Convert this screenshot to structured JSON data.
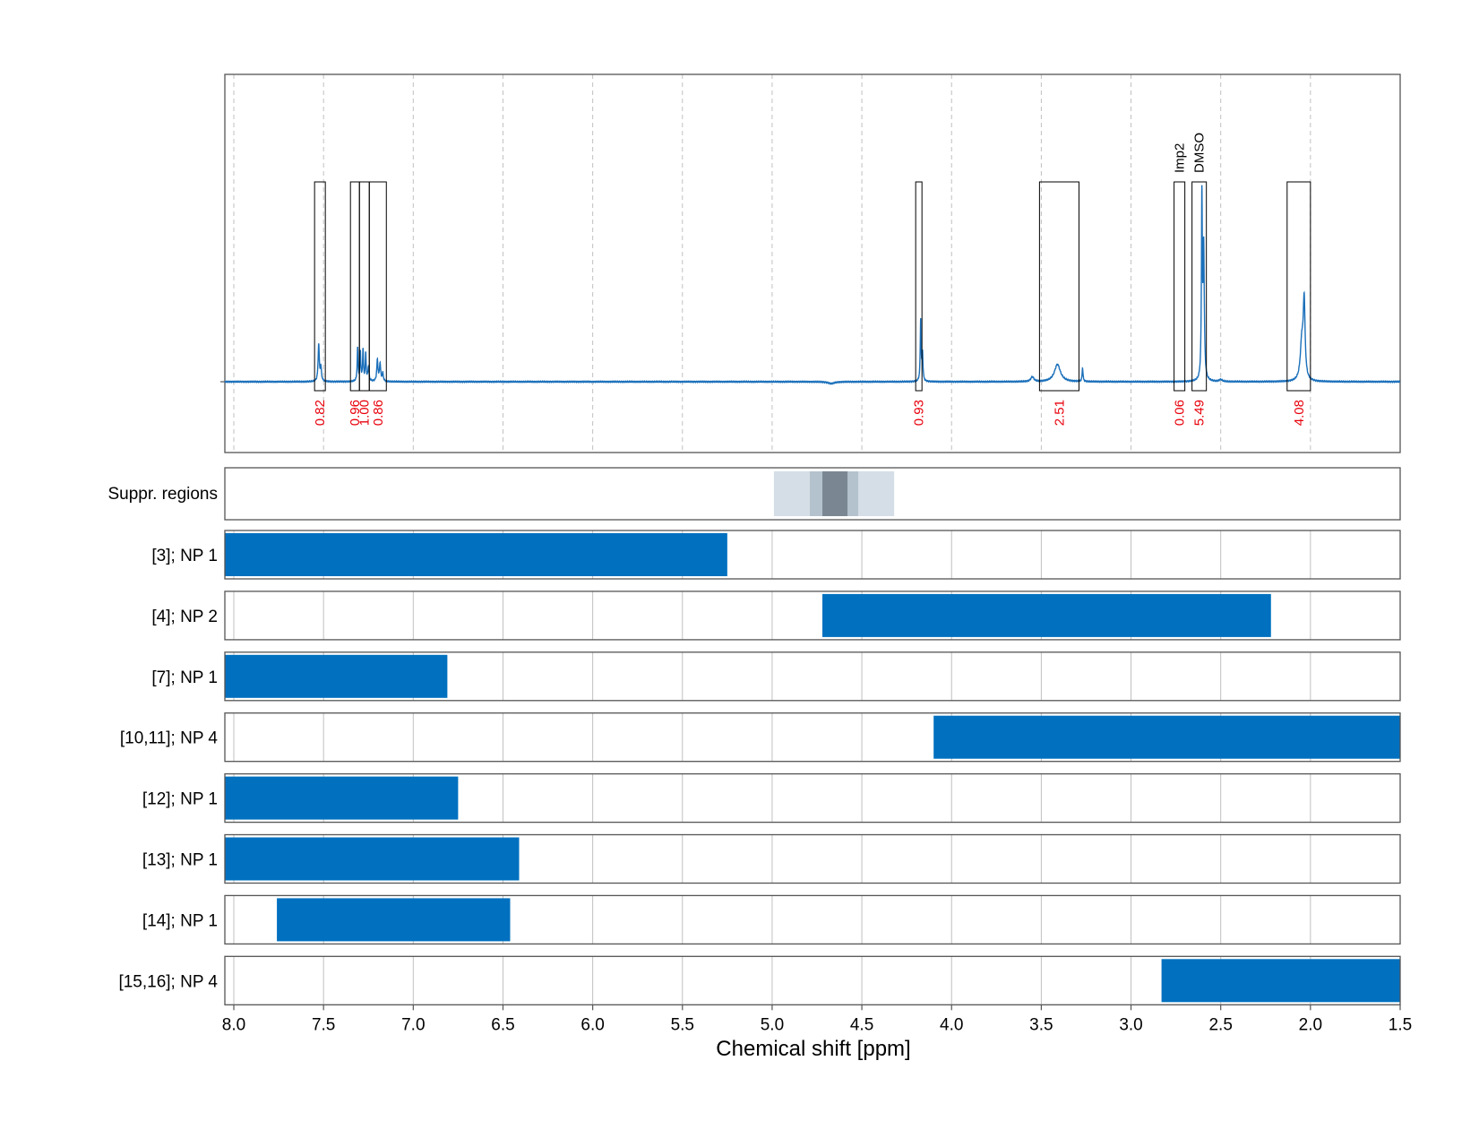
{
  "chart_data": {
    "type": "nmr-spectrum-with-range-bars",
    "xlabel": "Chemical shift [ppm]",
    "xlim": [
      8.05,
      1.5
    ],
    "x_reversed": true,
    "x_ticks": [
      8.0,
      7.5,
      7.0,
      6.5,
      6.0,
      5.5,
      5.0,
      4.5,
      4.0,
      3.5,
      3.0,
      2.5,
      2.0,
      1.5
    ],
    "x_tick_labels": [
      "8.0",
      "7.5",
      "7.0",
      "6.5",
      "6.0",
      "5.5",
      "5.0",
      "4.5",
      "4.0",
      "3.5",
      "3.0",
      "2.5",
      "2.0",
      "1.5"
    ],
    "grid": true,
    "spectrum": {
      "color": "#1a6fba",
      "peaks": [
        {
          "center": 7.527,
          "height": 0.19,
          "width": 0.004
        },
        {
          "center": 7.515,
          "height": 0.07,
          "width": 0.004
        },
        {
          "center": 7.31,
          "height": 0.17,
          "width": 0.003
        },
        {
          "center": 7.295,
          "height": 0.15,
          "width": 0.003
        },
        {
          "center": 7.28,
          "height": 0.16,
          "width": 0.003
        },
        {
          "center": 7.265,
          "height": 0.14,
          "width": 0.003
        },
        {
          "center": 7.25,
          "height": 0.07,
          "width": 0.004
        },
        {
          "center": 7.2,
          "height": 0.11,
          "width": 0.004
        },
        {
          "center": 7.185,
          "height": 0.09,
          "width": 0.004
        },
        {
          "center": 7.17,
          "height": 0.04,
          "width": 0.004
        },
        {
          "center": 4.67,
          "height": -0.01,
          "width": 0.02
        },
        {
          "center": 4.172,
          "height": 0.32,
          "width": 0.003
        },
        {
          "center": 4.162,
          "height": 0.14,
          "width": 0.003
        },
        {
          "center": 3.55,
          "height": 0.025,
          "width": 0.01
        },
        {
          "center": 3.41,
          "height": 0.09,
          "width": 0.02
        },
        {
          "center": 3.27,
          "height": 0.07,
          "width": 0.003
        },
        {
          "center": 2.605,
          "height": 0.93,
          "width": 0.003
        },
        {
          "center": 2.595,
          "height": 0.68,
          "width": 0.004
        },
        {
          "center": 2.5,
          "height": 0.01,
          "width": 0.01
        },
        {
          "center": 2.035,
          "height": 0.39,
          "width": 0.006
        },
        {
          "center": 2.048,
          "height": 0.2,
          "width": 0.01
        }
      ]
    },
    "integration_regions": [
      {
        "from": 7.55,
        "to": 7.49,
        "label": "0.82"
      },
      {
        "from": 7.35,
        "to": 7.3,
        "label": "0.96"
      },
      {
        "from": 7.3,
        "to": 7.245,
        "label": "1.00"
      },
      {
        "from": 7.245,
        "to": 7.15,
        "label": "0.86"
      },
      {
        "from": 4.2,
        "to": 4.165,
        "label": "0.93"
      },
      {
        "from": 3.51,
        "to": 3.29,
        "label": "2.51"
      },
      {
        "from": 2.76,
        "to": 2.7,
        "label": "0.06",
        "annotation": "Imp2"
      },
      {
        "from": 2.66,
        "to": 2.58,
        "label": "5.49",
        "annotation": "DMSO"
      },
      {
        "from": 2.13,
        "to": 2.0,
        "label": "4.08"
      }
    ],
    "suppression_label": "Suppr. regions",
    "suppression_regions": [
      {
        "from": 4.99,
        "to": 4.32,
        "color": "#d5dee6"
      },
      {
        "from": 4.79,
        "to": 4.52,
        "color": "#b4c2ce"
      },
      {
        "from": 4.72,
        "to": 4.58,
        "color": "#7a8793"
      }
    ],
    "range_bars_color": "#0070bf",
    "range_bars": [
      {
        "label": "[3]; NP 1",
        "from": 8.05,
        "to": 5.25
      },
      {
        "label": "[4]; NP 2",
        "from": 4.72,
        "to": 2.22
      },
      {
        "label": "[7]; NP 1",
        "from": 8.05,
        "to": 6.81
      },
      {
        "label": "[10,11]; NP 4",
        "from": 4.1,
        "to": 1.5
      },
      {
        "label": "[12]; NP 1",
        "from": 8.05,
        "to": 6.75
      },
      {
        "label": "[13]; NP 1",
        "from": 8.05,
        "to": 6.41
      },
      {
        "label": "[14]; NP 1",
        "from": 7.76,
        "to": 6.46
      },
      {
        "label": "[15,16]; NP 4",
        "from": 2.83,
        "to": 1.5
      }
    ]
  }
}
